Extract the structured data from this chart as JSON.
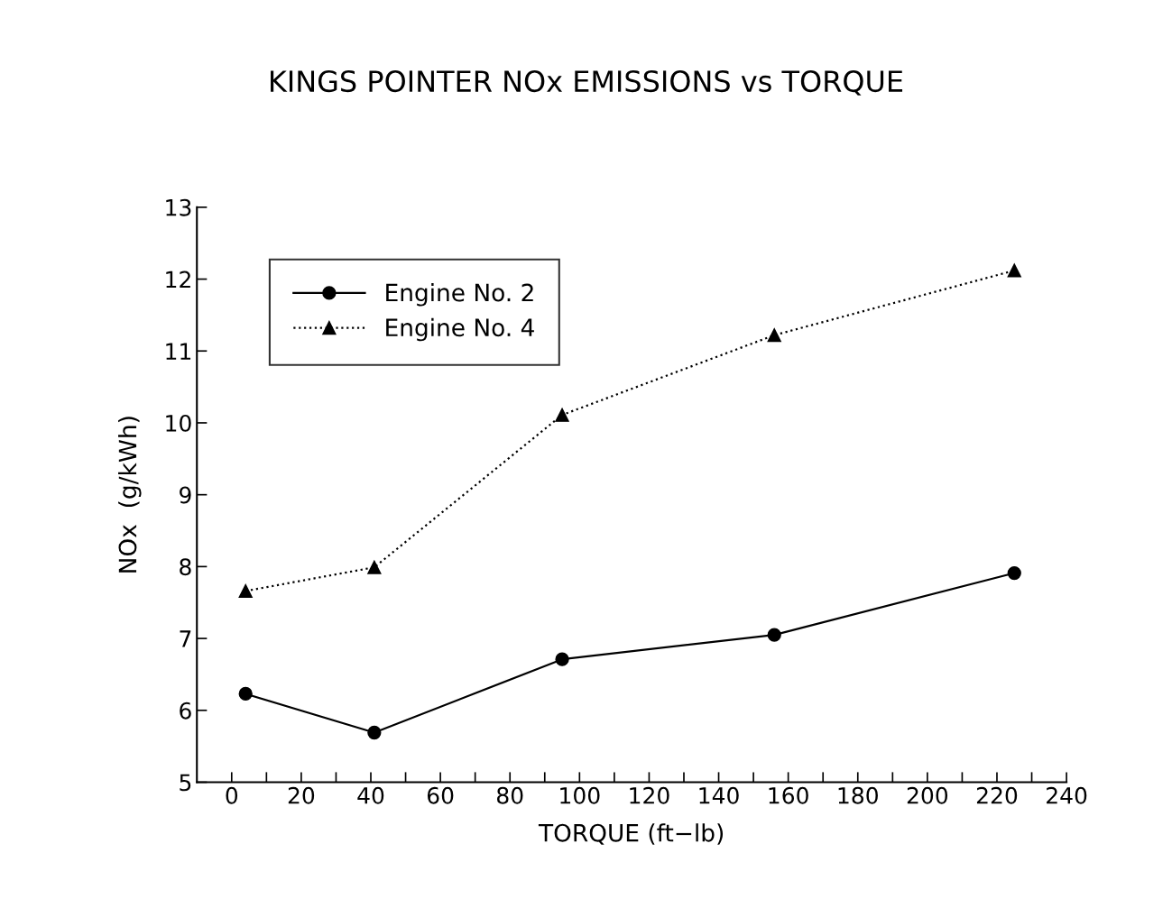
{
  "chart_data": {
    "type": "line",
    "title": "KINGS POINTER NOx EMISSIONS vs TORQUE",
    "xlabel": "TORQUE (ft−lb)",
    "ylabel": "NOx  (g/kWh)",
    "xlim": [
      -10,
      240
    ],
    "ylim": [
      5,
      13
    ],
    "xticks": [
      0,
      {
        "value": 10,
        "label": null
      },
      20,
      {
        "value": 30,
        "label": null
      },
      40,
      {
        "value": 50,
        "label": null
      },
      60,
      {
        "value": 70,
        "label": null
      },
      80,
      {
        "value": 90,
        "label": null
      },
      100,
      {
        "value": 110,
        "label": null
      },
      120,
      {
        "value": 130,
        "label": null
      },
      140,
      {
        "value": 150,
        "label": null
      },
      160,
      {
        "value": 170,
        "label": null
      },
      180,
      {
        "value": 190,
        "label": null
      },
      200,
      {
        "value": 210,
        "label": null
      },
      220,
      {
        "value": 230,
        "label": null
      },
      240
    ],
    "yticks": [
      5,
      6,
      7,
      8,
      9,
      10,
      11,
      12,
      13
    ],
    "grid": false,
    "legend": "top left",
    "series": [
      {
        "name": "Engine No. 2",
        "color": "#000000",
        "marker": "circle",
        "line_style": "solid",
        "x": [
          4,
          41,
          95,
          156,
          225
        ],
        "values": [
          6.23,
          5.69,
          6.71,
          7.05,
          7.91
        ]
      },
      {
        "name": "Engine No. 4",
        "color": "#000000",
        "marker": "triangle",
        "line_style": "dotted",
        "x": [
          4,
          41,
          95,
          156,
          225
        ],
        "values": [
          7.66,
          7.99,
          10.11,
          11.22,
          12.12
        ]
      }
    ]
  }
}
